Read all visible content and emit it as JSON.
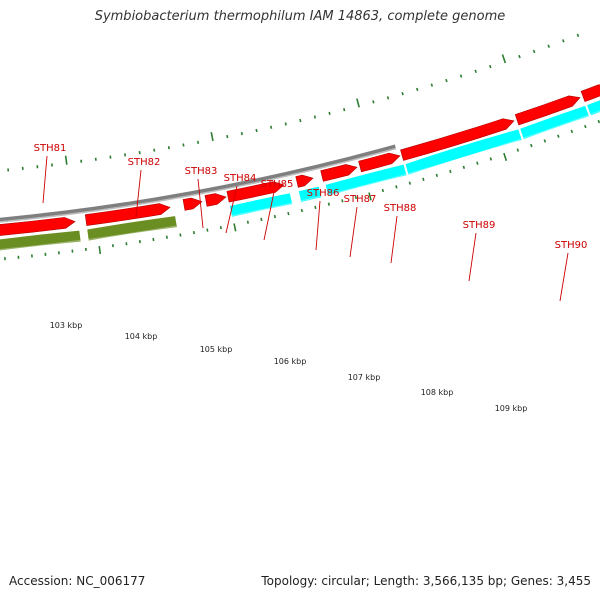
{
  "title": "Symbiobacterium thermophilum IAM 14863, complete genome",
  "accession": "Accession: NC_006177",
  "summary": "Topology: circular; Length: 3,566,135 bp; Genes: 3,455",
  "colors": {
    "backbone": "#7f7f7f",
    "forward_cds": "#ff0000",
    "feature_cyan": "#00ffff",
    "feature_olive": "#6b8e23",
    "tick": "#2e7d32",
    "gene_label": "#cc0000"
  },
  "scale_labels": [
    "103 kbp",
    "104 kbp",
    "105 kbp",
    "106 kbp",
    "107 kbp",
    "108 kbp",
    "109 kbp"
  ],
  "gene_labels": [
    "STH81",
    "STH82",
    "STH83",
    "STH84",
    "STH85",
    "STH86",
    "STH87",
    "STH88",
    "STH89",
    "STH90"
  ]
}
